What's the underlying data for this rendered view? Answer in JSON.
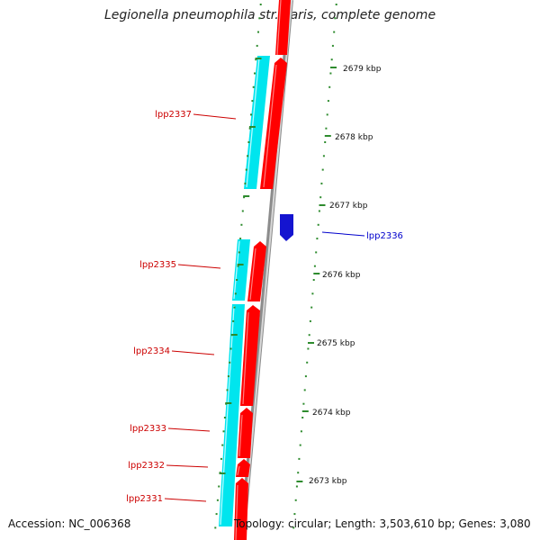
{
  "title": "Legionella pneumophila str. Paris, complete genome",
  "footer": {
    "accession": "Accession: NC_006368",
    "summary": "Topology: circular; Length: 3,503,610 bp; Genes: 3,080"
  },
  "colors": {
    "forward_gene": "#ff0000",
    "reverse_gene": "#0000ee",
    "cds_feature": "#00e5ee",
    "ticks": "#2e8b2e",
    "backbone": "#999999",
    "label_forward": "#cc0000",
    "label_reverse": "#0000cc"
  },
  "scale_labels": [
    "2679 kbp",
    "2678 kbp",
    "2677 kbp",
    "2676 kbp",
    "2675 kbp",
    "2674 kbp",
    "2673 kbp"
  ],
  "gene_labels": [
    {
      "text": "lpp2337",
      "strand": "forward"
    },
    {
      "text": "lpp2336",
      "strand": "reverse"
    },
    {
      "text": "lpp2335",
      "strand": "forward"
    },
    {
      "text": "lpp2334",
      "strand": "forward"
    },
    {
      "text": "lpp2333",
      "strand": "forward"
    },
    {
      "text": "lpp2332",
      "strand": "forward"
    },
    {
      "text": "lpp2331",
      "strand": "forward"
    }
  ]
}
